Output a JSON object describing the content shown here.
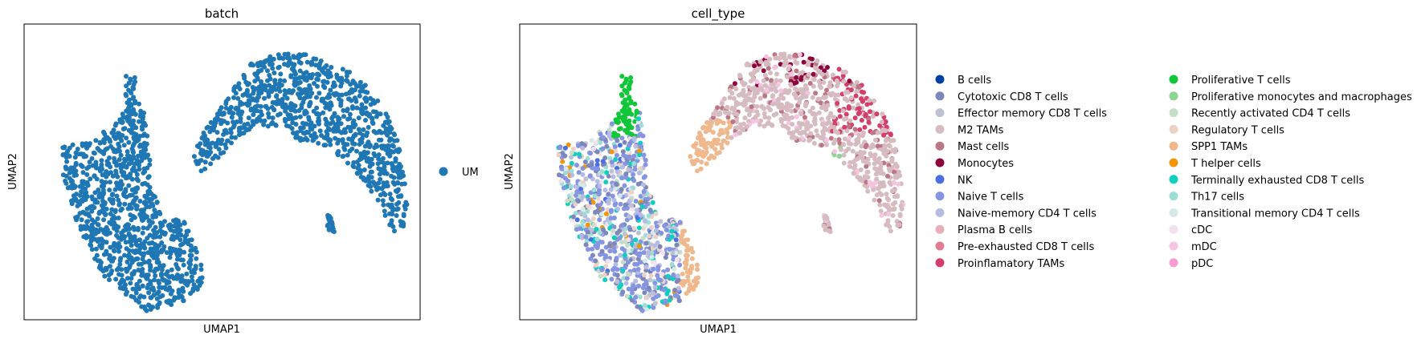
{
  "chart_data": [
    {
      "type": "scatter",
      "title": "batch",
      "xlabel": "UMAP1",
      "ylabel": "UMAP2",
      "grid": false,
      "legend": {
        "placement": "right"
      },
      "series": [
        {
          "name": "UM",
          "color": "#1f77b4"
        }
      ]
    },
    {
      "type": "scatter",
      "title": "cell_type",
      "xlabel": "UMAP1",
      "ylabel": "UMAP2",
      "grid": false,
      "legend": {
        "placement": "right",
        "columns": 2
      },
      "series": [
        {
          "name": "B cells",
          "color": "#023fa5"
        },
        {
          "name": "Cytotoxic CD8 T cells",
          "color": "#7d87b9"
        },
        {
          "name": "Effector memory CD8 T cells",
          "color": "#bec1d4"
        },
        {
          "name": "M2 TAMs",
          "color": "#d6bcc0"
        },
        {
          "name": "Mast cells",
          "color": "#bb7784"
        },
        {
          "name": "Monocytes",
          "color": "#8e063b"
        },
        {
          "name": "NK",
          "color": "#4a6fe3"
        },
        {
          "name": "Naive T cells",
          "color": "#8595e1"
        },
        {
          "name": "Naive-memory CD4 T cells",
          "color": "#b5bbe3"
        },
        {
          "name": "Plasma B cells",
          "color": "#e6afb9"
        },
        {
          "name": "Pre-exhausted CD8 T cells",
          "color": "#e07b91"
        },
        {
          "name": "Proinflamatory TAMs",
          "color": "#d33f6a"
        },
        {
          "name": "Proliferative T cells",
          "color": "#11c638"
        },
        {
          "name": "Proliferative monocytes and macrophages",
          "color": "#8dd593"
        },
        {
          "name": "Recently activated CD4 T cells",
          "color": "#c6dec7"
        },
        {
          "name": "Regulatory T cells",
          "color": "#ead3c6"
        },
        {
          "name": "SPP1 TAMs",
          "color": "#f0b98d"
        },
        {
          "name": "T helper cells",
          "color": "#ef9708"
        },
        {
          "name": "Terminally exhausted CD8 T cells",
          "color": "#0fcfc0"
        },
        {
          "name": "Th17 cells",
          "color": "#9cded6"
        },
        {
          "name": "Transitional memory CD4 T cells",
          "color": "#d5eae7"
        },
        {
          "name": "cDC",
          "color": "#f3e1eb"
        },
        {
          "name": "mDC",
          "color": "#f6c4e1"
        },
        {
          "name": "pDC",
          "color": "#f79cd4"
        }
      ]
    }
  ]
}
